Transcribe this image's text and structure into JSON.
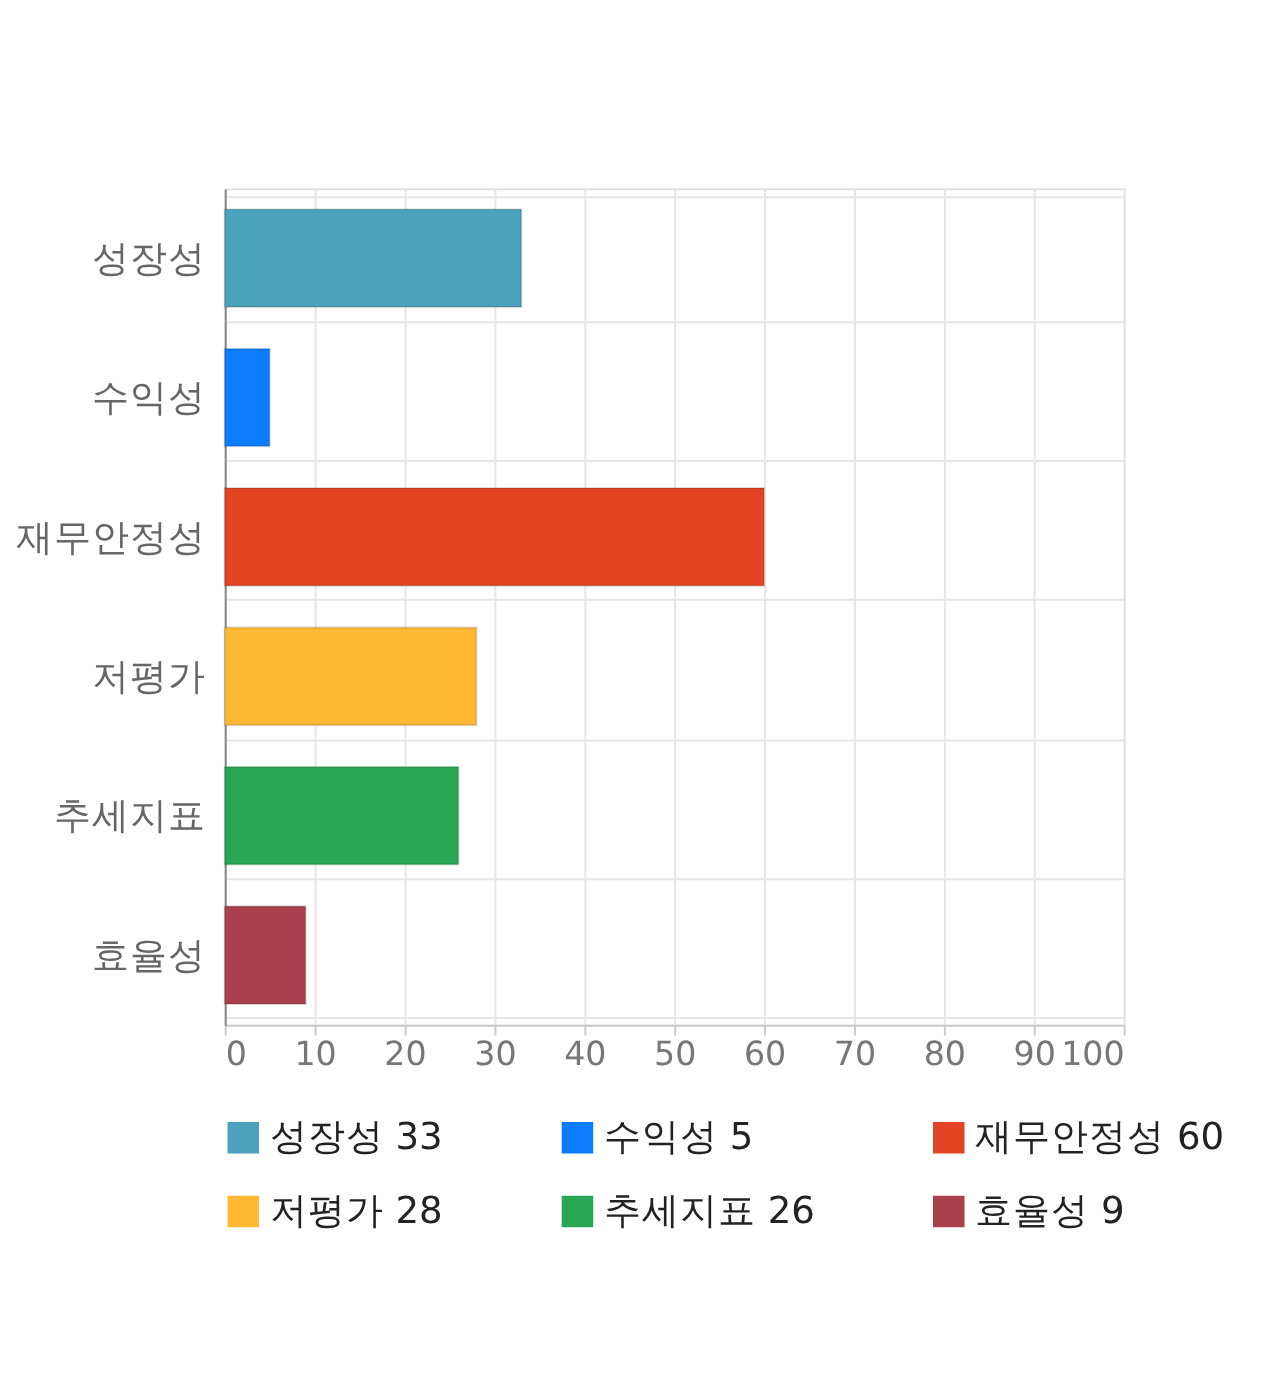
{
  "chart_data": {
    "type": "bar",
    "orientation": "horizontal",
    "categories": [
      "성장성",
      "수익성",
      "재무안정성",
      "저평가",
      "추세지표",
      "효율성"
    ],
    "series": [
      {
        "name": "성장성 33",
        "color": "#4aa2bb",
        "values": [
          33,
          null,
          null,
          null,
          null,
          null
        ]
      },
      {
        "name": "수익성 5",
        "color": "#0c7cff",
        "values": [
          null,
          5,
          null,
          null,
          null,
          null
        ]
      },
      {
        "name": "재무안정성 60",
        "color": "#e34524",
        "values": [
          null,
          null,
          60,
          null,
          null,
          null
        ]
      },
      {
        "name": "저평가 28",
        "color": "#ffb833",
        "values": [
          null,
          null,
          null,
          28,
          null,
          null
        ]
      },
      {
        "name": "추세지표 26",
        "color": "#28a654",
        "values": [
          null,
          null,
          null,
          null,
          26,
          null
        ]
      },
      {
        "name": "효율성 9",
        "color": "#aa3f4e",
        "values": [
          null,
          null,
          null,
          null,
          null,
          9
        ]
      }
    ],
    "xlim": [
      0,
      100
    ],
    "xticks": [
      0,
      10,
      20,
      30,
      40,
      50,
      60,
      70,
      80,
      90,
      100
    ],
    "grid": true,
    "legend": "bottom"
  }
}
